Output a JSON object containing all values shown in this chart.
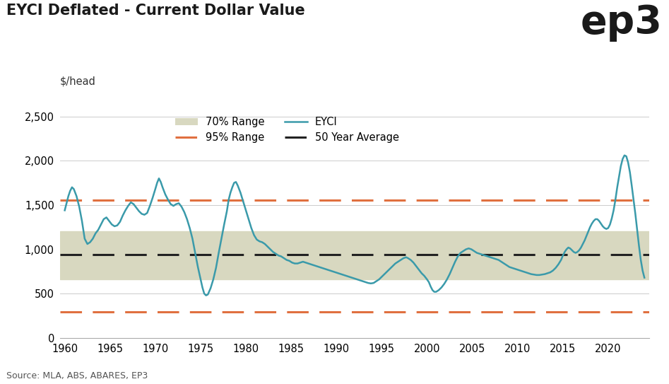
{
  "title": "EYCI Deflated - Current Dollar Value",
  "ylabel": "$/head",
  "source": "Source: MLA, ABS, ABARES, EP3",
  "xlim": [
    1959.5,
    2024.5
  ],
  "ylim": [
    0,
    2600
  ],
  "yticks": [
    0,
    500,
    1000,
    1500,
    2000,
    2500
  ],
  "xticks": [
    1960,
    1965,
    1970,
    1975,
    1980,
    1985,
    1990,
    1995,
    2000,
    2005,
    2010,
    2015,
    2020
  ],
  "fifty_year_avg": 940,
  "range_70_lower": 660,
  "range_70_upper": 1200,
  "range_95_upper": 1555,
  "range_95_lower": 295,
  "line_color": "#3a9aaa",
  "avg_color": "#222222",
  "range_95_color": "#e07040",
  "range_70_color": "#d8d8c0",
  "background_color": "#ffffff",
  "eyci_data": [
    [
      1960.0,
      1440
    ],
    [
      1960.2,
      1520
    ],
    [
      1960.4,
      1600
    ],
    [
      1960.6,
      1660
    ],
    [
      1960.8,
      1700
    ],
    [
      1961.0,
      1680
    ],
    [
      1961.3,
      1600
    ],
    [
      1961.6,
      1480
    ],
    [
      1961.9,
      1320
    ],
    [
      1962.2,
      1120
    ],
    [
      1962.5,
      1060
    ],
    [
      1962.8,
      1080
    ],
    [
      1963.1,
      1120
    ],
    [
      1963.4,
      1180
    ],
    [
      1963.7,
      1220
    ],
    [
      1964.0,
      1280
    ],
    [
      1964.3,
      1340
    ],
    [
      1964.6,
      1360
    ],
    [
      1964.9,
      1320
    ],
    [
      1965.2,
      1280
    ],
    [
      1965.5,
      1260
    ],
    [
      1965.8,
      1270
    ],
    [
      1966.1,
      1310
    ],
    [
      1966.4,
      1380
    ],
    [
      1966.7,
      1440
    ],
    [
      1967.0,
      1490
    ],
    [
      1967.3,
      1530
    ],
    [
      1967.6,
      1510
    ],
    [
      1967.9,
      1470
    ],
    [
      1968.2,
      1430
    ],
    [
      1968.5,
      1400
    ],
    [
      1968.8,
      1390
    ],
    [
      1969.1,
      1410
    ],
    [
      1969.4,
      1490
    ],
    [
      1969.7,
      1580
    ],
    [
      1970.0,
      1680
    ],
    [
      1970.2,
      1750
    ],
    [
      1970.4,
      1800
    ],
    [
      1970.6,
      1760
    ],
    [
      1970.8,
      1700
    ],
    [
      1971.1,
      1620
    ],
    [
      1971.4,
      1560
    ],
    [
      1971.7,
      1510
    ],
    [
      1972.0,
      1490
    ],
    [
      1972.3,
      1510
    ],
    [
      1972.6,
      1520
    ],
    [
      1972.9,
      1480
    ],
    [
      1973.2,
      1420
    ],
    [
      1973.5,
      1340
    ],
    [
      1973.8,
      1240
    ],
    [
      1974.1,
      1120
    ],
    [
      1974.4,
      960
    ],
    [
      1974.7,
      800
    ],
    [
      1975.0,
      660
    ],
    [
      1975.2,
      570
    ],
    [
      1975.4,
      500
    ],
    [
      1975.6,
      480
    ],
    [
      1975.8,
      490
    ],
    [
      1976.1,
      560
    ],
    [
      1976.4,
      660
    ],
    [
      1976.7,
      790
    ],
    [
      1977.0,
      960
    ],
    [
      1977.3,
      1120
    ],
    [
      1977.6,
      1280
    ],
    [
      1977.9,
      1430
    ],
    [
      1978.1,
      1560
    ],
    [
      1978.3,
      1640
    ],
    [
      1978.5,
      1700
    ],
    [
      1978.7,
      1750
    ],
    [
      1978.9,
      1760
    ],
    [
      1979.1,
      1720
    ],
    [
      1979.4,
      1640
    ],
    [
      1979.7,
      1540
    ],
    [
      1980.0,
      1440
    ],
    [
      1980.3,
      1340
    ],
    [
      1980.6,
      1240
    ],
    [
      1980.9,
      1160
    ],
    [
      1981.2,
      1110
    ],
    [
      1981.5,
      1090
    ],
    [
      1981.8,
      1080
    ],
    [
      1982.1,
      1060
    ],
    [
      1982.4,
      1030
    ],
    [
      1982.7,
      1000
    ],
    [
      1983.0,
      970
    ],
    [
      1983.3,
      950
    ],
    [
      1983.6,
      930
    ],
    [
      1983.9,
      920
    ],
    [
      1984.2,
      900
    ],
    [
      1984.5,
      880
    ],
    [
      1984.8,
      870
    ],
    [
      1985.1,
      850
    ],
    [
      1985.4,
      840
    ],
    [
      1985.7,
      840
    ],
    [
      1986.0,
      850
    ],
    [
      1986.3,
      860
    ],
    [
      1986.6,
      850
    ],
    [
      1986.9,
      840
    ],
    [
      1987.2,
      830
    ],
    [
      1987.5,
      820
    ],
    [
      1987.8,
      810
    ],
    [
      1988.1,
      800
    ],
    [
      1988.4,
      790
    ],
    [
      1988.7,
      780
    ],
    [
      1989.0,
      770
    ],
    [
      1989.3,
      760
    ],
    [
      1989.6,
      750
    ],
    [
      1989.9,
      740
    ],
    [
      1990.2,
      730
    ],
    [
      1990.5,
      720
    ],
    [
      1990.8,
      710
    ],
    [
      1991.1,
      700
    ],
    [
      1991.4,
      690
    ],
    [
      1991.7,
      680
    ],
    [
      1992.0,
      670
    ],
    [
      1992.3,
      660
    ],
    [
      1992.6,
      650
    ],
    [
      1992.9,
      640
    ],
    [
      1993.2,
      630
    ],
    [
      1993.5,
      620
    ],
    [
      1993.8,
      615
    ],
    [
      1994.1,
      620
    ],
    [
      1994.4,
      640
    ],
    [
      1994.7,
      660
    ],
    [
      1995.0,
      690
    ],
    [
      1995.3,
      720
    ],
    [
      1995.6,
      750
    ],
    [
      1995.9,
      780
    ],
    [
      1996.2,
      810
    ],
    [
      1996.5,
      840
    ],
    [
      1996.8,
      860
    ],
    [
      1997.1,
      880
    ],
    [
      1997.4,
      900
    ],
    [
      1997.7,
      910
    ],
    [
      1997.9,
      900
    ],
    [
      1998.2,
      880
    ],
    [
      1998.5,
      850
    ],
    [
      1998.8,
      810
    ],
    [
      1999.1,
      770
    ],
    [
      1999.4,
      730
    ],
    [
      1999.7,
      700
    ],
    [
      2000.0,
      660
    ],
    [
      2000.2,
      630
    ],
    [
      2000.4,
      580
    ],
    [
      2000.6,
      540
    ],
    [
      2000.8,
      520
    ],
    [
      2001.0,
      520
    ],
    [
      2001.3,
      540
    ],
    [
      2001.6,
      570
    ],
    [
      2001.9,
      610
    ],
    [
      2002.2,
      660
    ],
    [
      2002.5,
      720
    ],
    [
      2002.8,
      790
    ],
    [
      2003.1,
      860
    ],
    [
      2003.4,
      920
    ],
    [
      2003.7,
      960
    ],
    [
      2004.0,
      980
    ],
    [
      2004.3,
      1000
    ],
    [
      2004.6,
      1010
    ],
    [
      2004.9,
      1000
    ],
    [
      2005.2,
      980
    ],
    [
      2005.5,
      960
    ],
    [
      2005.8,
      950
    ],
    [
      2006.1,
      940
    ],
    [
      2006.4,
      930
    ],
    [
      2006.7,
      920
    ],
    [
      2007.0,
      910
    ],
    [
      2007.3,
      900
    ],
    [
      2007.6,
      890
    ],
    [
      2007.9,
      880
    ],
    [
      2008.2,
      860
    ],
    [
      2008.5,
      840
    ],
    [
      2008.8,
      820
    ],
    [
      2009.1,
      800
    ],
    [
      2009.4,
      790
    ],
    [
      2009.7,
      780
    ],
    [
      2010.0,
      770
    ],
    [
      2010.3,
      760
    ],
    [
      2010.6,
      750
    ],
    [
      2010.9,
      740
    ],
    [
      2011.2,
      730
    ],
    [
      2011.5,
      720
    ],
    [
      2011.8,
      715
    ],
    [
      2012.1,
      710
    ],
    [
      2012.4,
      710
    ],
    [
      2012.7,
      715
    ],
    [
      2013.0,
      720
    ],
    [
      2013.3,
      730
    ],
    [
      2013.6,
      740
    ],
    [
      2013.9,
      760
    ],
    [
      2014.2,
      790
    ],
    [
      2014.5,
      830
    ],
    [
      2014.8,
      880
    ],
    [
      2015.0,
      930
    ],
    [
      2015.2,
      970
    ],
    [
      2015.4,
      1000
    ],
    [
      2015.6,
      1020
    ],
    [
      2015.8,
      1010
    ],
    [
      2016.0,
      990
    ],
    [
      2016.2,
      970
    ],
    [
      2016.4,
      960
    ],
    [
      2016.6,
      970
    ],
    [
      2016.8,
      990
    ],
    [
      2017.0,
      1020
    ],
    [
      2017.2,
      1060
    ],
    [
      2017.4,
      1100
    ],
    [
      2017.6,
      1150
    ],
    [
      2017.8,
      1200
    ],
    [
      2018.0,
      1250
    ],
    [
      2018.2,
      1290
    ],
    [
      2018.4,
      1320
    ],
    [
      2018.6,
      1340
    ],
    [
      2018.8,
      1340
    ],
    [
      2019.0,
      1320
    ],
    [
      2019.2,
      1290
    ],
    [
      2019.4,
      1260
    ],
    [
      2019.6,
      1240
    ],
    [
      2019.8,
      1230
    ],
    [
      2020.0,
      1240
    ],
    [
      2020.2,
      1280
    ],
    [
      2020.4,
      1350
    ],
    [
      2020.6,
      1440
    ],
    [
      2020.8,
      1560
    ],
    [
      2021.0,
      1700
    ],
    [
      2021.2,
      1820
    ],
    [
      2021.4,
      1940
    ],
    [
      2021.6,
      2020
    ],
    [
      2021.8,
      2060
    ],
    [
      2022.0,
      2050
    ],
    [
      2022.2,
      1980
    ],
    [
      2022.4,
      1870
    ],
    [
      2022.6,
      1720
    ],
    [
      2022.8,
      1560
    ],
    [
      2023.0,
      1400
    ],
    [
      2023.2,
      1220
    ],
    [
      2023.4,
      1040
    ],
    [
      2023.6,
      880
    ],
    [
      2023.8,
      760
    ],
    [
      2024.0,
      680
    ]
  ]
}
